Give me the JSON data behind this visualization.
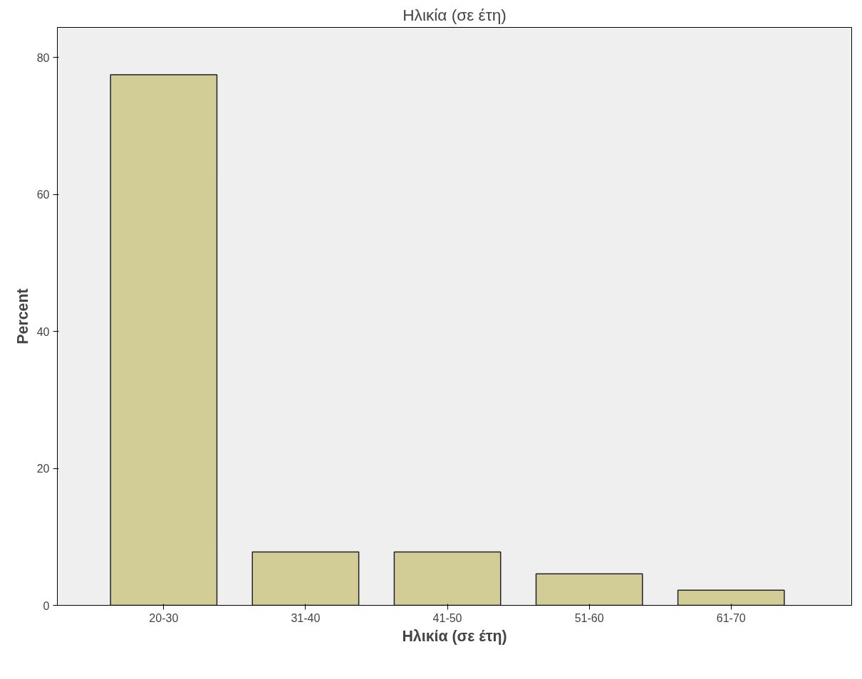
{
  "chart_data": {
    "type": "bar",
    "title": "Ηλικία (σε έτη)",
    "xlabel": "Ηλικία (σε έτη)",
    "ylabel": "Percent",
    "categories": [
      "20-30",
      "31-40",
      "41-50",
      "51-60",
      "61-70"
    ],
    "values": [
      77.5,
      7.8,
      7.8,
      4.6,
      2.2
    ],
    "color": "#d2cc96",
    "ylim": [
      0,
      84.4
    ],
    "yticks": [
      0,
      20,
      40,
      60,
      80
    ],
    "grid": false
  }
}
